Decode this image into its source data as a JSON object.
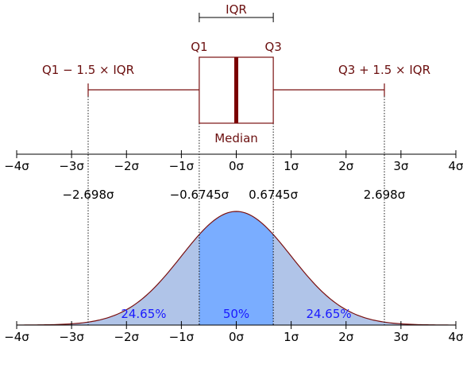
{
  "chart_data": {
    "type": "boxplot-with-normal-density",
    "box_plot": {
      "iqr_label": "IQR",
      "q1_label": "Q1",
      "q3_label": "Q3",
      "median_label": "Median",
      "lower_whisker_label": "Q1 − 1.5 × IQR",
      "upper_whisker_label": "Q3 + 1.5 × IQR",
      "q1": -0.6745,
      "median": 0,
      "q3": 0.6745,
      "lower_whisker": -2.698,
      "upper_whisker": 2.698
    },
    "x_range": [
      -4,
      4
    ],
    "ticks": [
      {
        "value": -4,
        "label": "−4σ"
      },
      {
        "value": -3,
        "label": "−3σ"
      },
      {
        "value": -2,
        "label": "−2σ"
      },
      {
        "value": -1,
        "label": "−1σ"
      },
      {
        "value": 0,
        "label": "0σ"
      },
      {
        "value": 1,
        "label": "1σ"
      },
      {
        "value": 2,
        "label": "2σ"
      },
      {
        "value": 3,
        "label": "3σ"
      },
      {
        "value": 4,
        "label": "4σ"
      }
    ],
    "marker_values": [
      {
        "value": -2.698,
        "label": "−2.698σ"
      },
      {
        "value": -0.6745,
        "label": "−0.6745σ"
      },
      {
        "value": 0.6745,
        "label": "0.6745σ"
      },
      {
        "value": 2.698,
        "label": "2.698σ"
      }
    ],
    "density_regions": [
      {
        "from": -2.698,
        "to": -0.6745,
        "label": "24.65%",
        "color": "#b0c4e8"
      },
      {
        "from": -0.6745,
        "to": 0.6745,
        "label": "50%",
        "color": "#7aadff"
      },
      {
        "from": 0.6745,
        "to": 2.698,
        "label": "24.65%",
        "color": "#b0c4e8"
      }
    ],
    "colors": {
      "box_stroke": "#7a1010",
      "median_line": "#7a0000",
      "text_dark": "#6b0f0f",
      "region_text": "#1a1aff",
      "tail_fill": "#b0c4e8",
      "outer_fill": "#b0c4e8",
      "center_fill": "#7aadff"
    }
  }
}
